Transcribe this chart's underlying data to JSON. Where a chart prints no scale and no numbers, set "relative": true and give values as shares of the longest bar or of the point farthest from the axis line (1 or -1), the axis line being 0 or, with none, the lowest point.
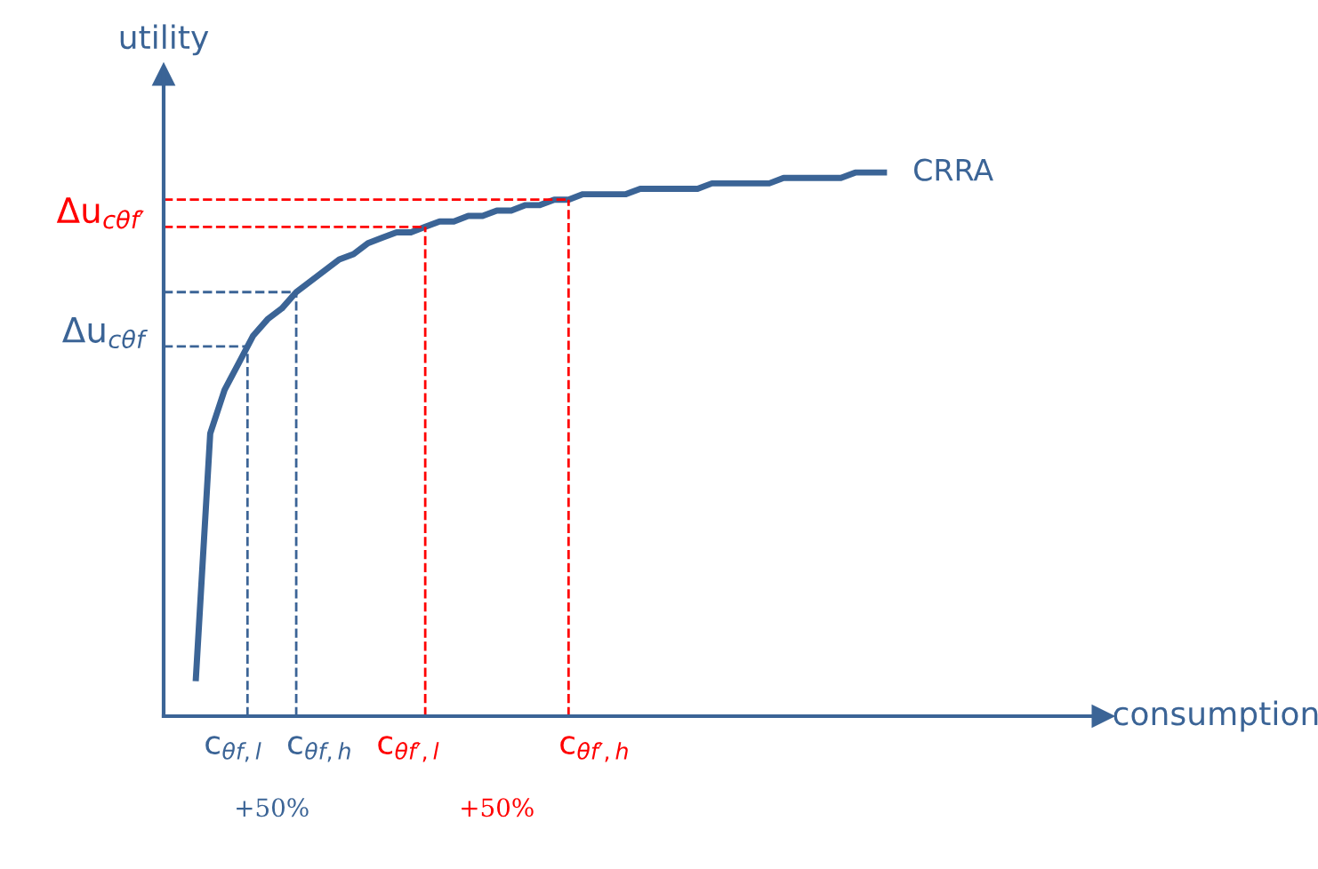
{
  "chart_data": {
    "type": "line",
    "relative": true,
    "ylabel": "utility",
    "legend": false,
    "tick_labels": false,
    "line_style": "solid",
    "marker": "none",
    "categories": [
      null,
      null,
      null,
      null,
      null,
      null,
      null,
      null,
      null,
      null,
      null,
      null,
      null,
      null,
      null,
      null,
      null,
      null,
      null,
      null,
      null,
      null,
      null,
      null,
      null,
      null,
      null,
      null,
      null,
      null,
      null,
      null,
      null,
      null,
      null,
      null,
      null,
      null,
      null,
      null,
      null,
      null,
      null,
      null,
      null,
      null,
      null,
      null,
      null
    ],
    "series": [
      {
        "name": "CRRA",
        "color": "#3b6496",
        "values": [
          0.07,
          0.52,
          0.6,
          0.65,
          0.7,
          0.73,
          0.75,
          0.78,
          0.8,
          0.82,
          0.84,
          0.85,
          0.87,
          0.88,
          0.89,
          0.89,
          0.9,
          0.91,
          0.91,
          0.92,
          0.92,
          0.93,
          0.93,
          0.94,
          0.94,
          0.95,
          0.95,
          0.96,
          0.96,
          0.96,
          0.96,
          0.97,
          0.97,
          0.97,
          0.97,
          0.97,
          0.98,
          0.98,
          0.98,
          0.98,
          0.98,
          0.99,
          0.99,
          0.99,
          0.99,
          0.99,
          1.0,
          1.0,
          1.0
        ]
      }
    ],
    "ref_lines": [
      {
        "axis": "y",
        "value": 0.68,
        "label": "Δu$_{cθf}$",
        "color": "#3b6496",
        "line_style": "dashed"
      },
      {
        "axis": "y",
        "value": 0.78,
        "label": null,
        "color": "#3b6496",
        "line_style": "dashed"
      },
      {
        "axis": "y",
        "value": 0.9,
        "label": "Δu$_{cθf′}$",
        "color": "#ff0000",
        "line_style": "dashed"
      },
      {
        "axis": "y",
        "value": 0.95,
        "label": null,
        "color": "#ff0000",
        "line_style": "dashed"
      }
    ],
    "annotations": [
      "c$_{θf,l}$",
      "c$_{θf,h}$",
      "c$_{θf′,l}$",
      "c$_{θf′,h}$",
      "+50%",
      "+50%",
      "consumption"
    ]
  }
}
